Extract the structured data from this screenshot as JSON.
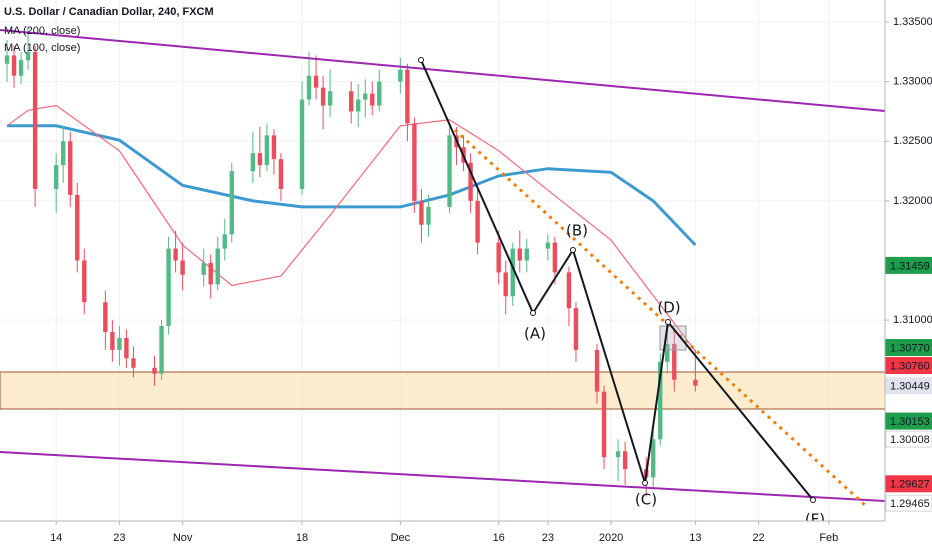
{
  "chart_data": {
    "type": "candlestick",
    "title": "U.S. Dollar / Canadian Dollar, 240, FXCM",
    "up_color": "#53b987",
    "down_color": "#eb4d5c",
    "x": [
      "2019-10-07",
      "2019-10-08",
      "2019-10-09",
      "2019-10-10",
      "2019-10-11",
      "2019-10-14",
      "2019-10-15",
      "2019-10-16",
      "2019-10-17",
      "2019-10-18",
      "2019-10-21",
      "2019-10-22",
      "2019-10-23",
      "2019-10-24",
      "2019-10-25",
      "2019-10-28",
      "2019-10-29",
      "2019-10-30",
      "2019-10-31",
      "2019-11-01",
      "2019-11-04",
      "2019-11-05",
      "2019-11-06",
      "2019-11-07",
      "2019-11-08",
      "2019-11-11",
      "2019-11-12",
      "2019-11-13",
      "2019-11-14",
      "2019-11-15",
      "2019-11-18",
      "2019-11-19",
      "2019-11-20",
      "2019-11-21",
      "2019-11-22",
      "2019-11-25",
      "2019-11-26",
      "2019-11-27",
      "2019-11-28",
      "2019-11-29",
      "2019-12-02",
      "2019-12-03",
      "2019-12-04",
      "2019-12-05",
      "2019-12-06",
      "2019-12-09",
      "2019-12-10",
      "2019-12-11",
      "2019-12-12",
      "2019-12-13",
      "2019-12-16",
      "2019-12-17",
      "2019-12-18",
      "2019-12-19",
      "2019-12-20",
      "2019-12-23",
      "2019-12-24",
      "2019-12-26",
      "2019-12-27",
      "2019-12-30",
      "2019-12-31",
      "2020-01-02",
      "2020-01-03",
      "2020-01-06",
      "2020-01-07",
      "2020-01-08",
      "2020-01-09",
      "2020-01-10",
      "2020-01-13"
    ],
    "open": [
      1.3315,
      1.3322,
      1.3305,
      1.3318,
      1.3325,
      1.321,
      1.323,
      1.325,
      1.3205,
      1.315,
      1.3115,
      1.309,
      1.3075,
      1.3085,
      1.3068,
      1.306,
      1.3055,
      1.3095,
      1.316,
      1.315,
      1.3138,
      1.3148,
      1.313,
      1.316,
      1.3172,
      1.3225,
      1.324,
      1.323,
      1.3255,
      1.3235,
      1.321,
      1.3285,
      1.3305,
      1.3295,
      1.328,
      1.3292,
      1.3275,
      1.3285,
      1.329,
      1.328,
      1.33,
      1.331,
      1.3265,
      1.32,
      1.318,
      1.3195,
      1.3255,
      1.3245,
      1.3232,
      1.32,
      1.3165,
      1.314,
      1.312,
      1.316,
      1.315,
      1.316,
      1.3165,
      1.314,
      1.311,
      1.3075,
      1.304,
      1.2985,
      1.299,
      1.2975,
      1.2968,
      1.3,
      1.3065,
      1.308,
      1.305
    ],
    "high": [
      1.3335,
      1.333,
      1.3325,
      1.3345,
      1.333,
      1.324,
      1.3262,
      1.3258,
      1.3215,
      1.316,
      1.3125,
      1.31,
      1.3095,
      1.3092,
      1.3078,
      1.307,
      1.31,
      1.317,
      1.3175,
      1.3165,
      1.316,
      1.3155,
      1.317,
      1.3185,
      1.3232,
      1.3258,
      1.3262,
      1.3265,
      1.326,
      1.324,
      1.33,
      1.3325,
      1.3322,
      1.3305,
      1.331,
      1.33,
      1.3298,
      1.3302,
      1.33,
      1.331,
      1.332,
      1.3315,
      1.327,
      1.321,
      1.3205,
      1.3265,
      1.3262,
      1.3255,
      1.324,
      1.321,
      1.3175,
      1.315,
      1.3165,
      1.3175,
      1.3168,
      1.3172,
      1.317,
      1.3145,
      1.3115,
      1.308,
      1.3045,
      1.3,
      1.2998,
      1.2985,
      1.301,
      1.3072,
      1.3098,
      1.309,
      1.3075
    ],
    "low": [
      1.33,
      1.3295,
      1.3298,
      1.331,
      1.3195,
      1.319,
      1.3215,
      1.3195,
      1.314,
      1.3105,
      1.3075,
      1.3065,
      1.3062,
      1.306,
      1.3052,
      1.3045,
      1.305,
      1.3088,
      1.314,
      1.3125,
      1.3128,
      1.3118,
      1.3125,
      1.315,
      1.3165,
      1.3215,
      1.322,
      1.3225,
      1.3222,
      1.32,
      1.3205,
      1.328,
      1.3285,
      1.326,
      1.327,
      1.3265,
      1.3262,
      1.327,
      1.3272,
      1.3275,
      1.329,
      1.325,
      1.319,
      1.3165,
      1.317,
      1.319,
      1.323,
      1.3225,
      1.319,
      1.3155,
      1.313,
      1.3105,
      1.3112,
      1.314,
      1.314,
      1.315,
      1.313,
      1.3095,
      1.3065,
      1.303,
      1.2975,
      1.2965,
      1.2962,
      1.2952,
      1.2958,
      1.2995,
      1.3055,
      1.304,
      1.304
    ],
    "close": [
      1.3322,
      1.3305,
      1.3318,
      1.3325,
      1.321,
      1.323,
      1.325,
      1.3205,
      1.315,
      1.3115,
      1.309,
      1.3075,
      1.3085,
      1.3068,
      1.306,
      1.3055,
      1.3095,
      1.316,
      1.315,
      1.3138,
      1.3148,
      1.313,
      1.316,
      1.3172,
      1.3225,
      1.324,
      1.323,
      1.3255,
      1.3235,
      1.321,
      1.3285,
      1.3305,
      1.3295,
      1.328,
      1.3292,
      1.3275,
      1.3285,
      1.329,
      1.328,
      1.33,
      1.331,
      1.3265,
      1.32,
      1.318,
      1.3195,
      1.3255,
      1.3245,
      1.3232,
      1.32,
      1.3165,
      1.314,
      1.312,
      1.316,
      1.315,
      1.316,
      1.3165,
      1.314,
      1.311,
      1.3075,
      1.304,
      1.2985,
      1.299,
      1.2975,
      1.2968,
      1.3,
      1.3065,
      1.308,
      1.305,
      1.3045
    ],
    "series": [
      {
        "name": "MA (200, close)",
        "color": "#3d9ad1",
        "x": [
          "2019-10-07",
          "2019-10-14",
          "2019-10-23",
          "2019-11-01",
          "2019-11-11",
          "2019-11-18",
          "2019-12-02",
          "2019-12-09",
          "2019-12-16",
          "2019-12-23",
          "2020-01-01",
          "2020-01-07",
          "2020-01-13"
        ],
        "values": [
          1.3263,
          1.3263,
          1.3251,
          1.3213,
          1.32,
          1.3195,
          1.3195,
          1.3205,
          1.3221,
          1.3227,
          1.3224,
          1.32,
          1.3163
        ]
      },
      {
        "name": "MA (100, close)",
        "color": "#f06a78",
        "x": [
          "2019-10-07",
          "2019-10-10",
          "2019-10-14",
          "2019-10-23",
          "2019-11-01",
          "2019-11-08",
          "2019-11-15",
          "2019-11-22",
          "2019-12-02",
          "2019-12-09",
          "2019-12-16",
          "2019-12-23",
          "2020-01-01",
          "2020-01-13"
        ],
        "values": [
          1.3263,
          1.3276,
          1.328,
          1.3242,
          1.3163,
          1.3129,
          1.3137,
          1.3188,
          1.3263,
          1.3268,
          1.3242,
          1.3209,
          1.3167,
          1.3074
        ]
      }
    ],
    "xlim": [
      "2019-10-06",
      "2020-02-09"
    ],
    "xticks": [
      {
        "value": "2019-10-14",
        "label": "14"
      },
      {
        "value": "2019-10-23",
        "label": "23"
      },
      {
        "value": "2019-11-01",
        "label": "Nov"
      },
      {
        "value": "2019-11-18",
        "label": "18"
      },
      {
        "value": "2019-12-02",
        "label": "Dec"
      },
      {
        "value": "2019-12-16",
        "label": "16"
      },
      {
        "value": "2019-12-23",
        "label": "23"
      },
      {
        "value": "2020-01-01",
        "label": "2020"
      },
      {
        "value": "2020-01-13",
        "label": "13"
      },
      {
        "value": "2020-01-22",
        "label": "22"
      },
      {
        "value": "2020-02-01",
        "label": "Feb"
      }
    ],
    "ylim": [
      1.29315,
      1.33685
    ],
    "yticks": [
      {
        "value": 1.335,
        "label": "1.33500"
      },
      {
        "value": 1.33,
        "label": "1.33000"
      },
      {
        "value": 1.325,
        "label": "1.32500"
      },
      {
        "value": 1.32,
        "label": "1.32000"
      },
      {
        "value": 1.31,
        "label": "1.31000"
      }
    ],
    "price_labels": [
      {
        "value": 1.31459,
        "label": "1.31459",
        "color": "#1e9d4a"
      },
      {
        "value": 1.3077,
        "label": "1.30770",
        "color": "#1e9d4a"
      },
      {
        "value": 1.3076,
        "label": "1.30760",
        "color": "#f23645"
      },
      {
        "value": 1.30449,
        "label": "1.30449",
        "color": "#e0e3eb"
      },
      {
        "value": 1.30153,
        "label": "1.30153",
        "color": "#1e9d4a"
      },
      {
        "value": 1.30008,
        "label": "1.30008",
        "color": "#ffffff"
      },
      {
        "value": 1.29627,
        "label": "1.29627",
        "color": "#f23645"
      },
      {
        "value": 1.29465,
        "label": "1.29465",
        "color": "#ffffff"
      }
    ],
    "wave_labels": [
      "(A)",
      "(B)",
      "(C)",
      "(D)",
      "(F)"
    ],
    "grid": true
  }
}
